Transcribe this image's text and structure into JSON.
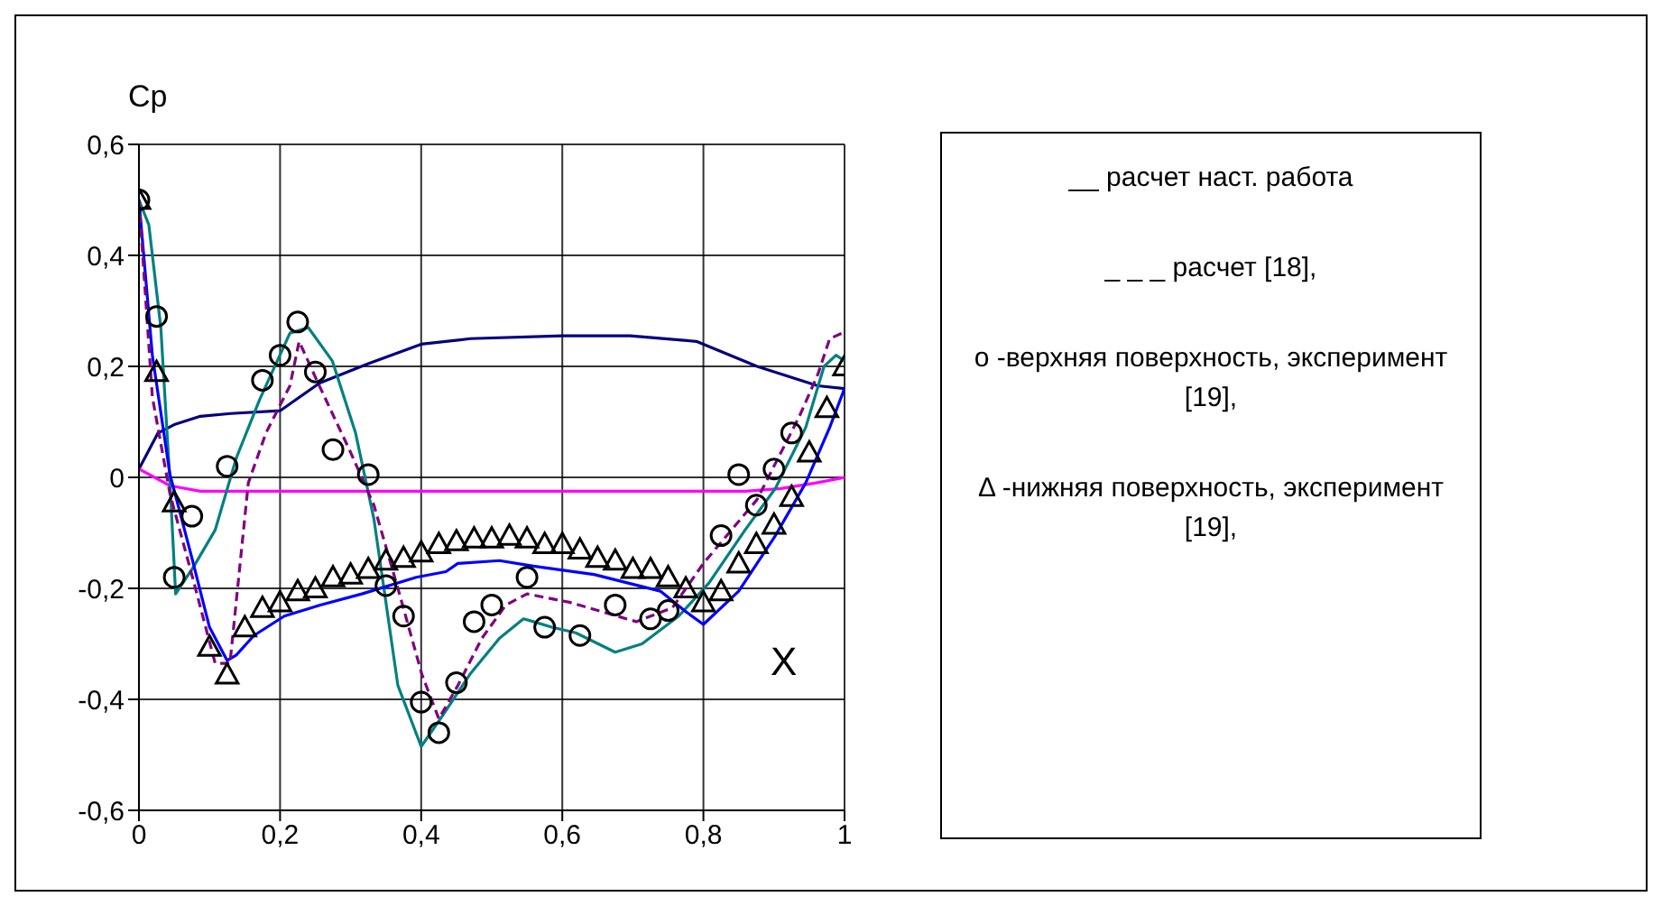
{
  "chart_data": {
    "type": "line",
    "xlabel": "X",
    "ylabel": "Cp",
    "xlim": [
      0,
      1
    ],
    "ylim": [
      -0.6,
      0.6
    ],
    "xticks": [
      0,
      {
        "value": 0.2,
        "label": "0,2"
      },
      {
        "value": 0.4,
        "label": "0,4"
      },
      {
        "value": 0.6,
        "label": "0,6"
      },
      {
        "value": 0.8,
        "label": "0,8"
      },
      1
    ],
    "yticks": [
      {
        "value": -0.6,
        "label": "-0,6"
      },
      {
        "value": -0.4,
        "label": "-0,4"
      },
      {
        "value": -0.2,
        "label": "-0,2"
      },
      0,
      {
        "value": 0.2,
        "label": "0,2"
      },
      {
        "value": 0.4,
        "label": "0,4"
      },
      {
        "value": 0.6,
        "label": "0,6"
      }
    ],
    "grid": true,
    "annotations": [
      "__ расчет наст. работа",
      "_ _ _ расчет [18],",
      "о -верхняя поверхность, эксперимент [19],",
      "Δ -нижняя поверхность, эксперимент [19],"
    ],
    "series": [
      {
        "color": "#000080",
        "line_style": "solid",
        "x": [
          0,
          0.027,
          0.05,
          0.087,
          0.13,
          0.2,
          0.256,
          0.325,
          0.4,
          0.47,
          0.6,
          0.696,
          0.79,
          0.876,
          0.962,
          1
        ],
        "values": [
          0.015,
          0.08,
          0.095,
          0.11,
          0.115,
          0.12,
          0.17,
          0.205,
          0.24,
          0.25,
          0.255,
          0.255,
          0.245,
          0.2,
          0.165,
          0.16
        ]
      },
      {
        "color": "#ff00ff",
        "line_style": "solid",
        "x": [
          0,
          0.044,
          0.087,
          0.86,
          0.91,
          0.96,
          1
        ],
        "values": [
          0.015,
          -0.015,
          -0.025,
          -0.025,
          -0.02,
          -0.01,
          0
        ]
      },
      {
        "color": "#008080",
        "line_style": "solid",
        "x": [
          0,
          0.014,
          0.031,
          0.044,
          0.052,
          0.078,
          0.108,
          0.138,
          0.171,
          0.214,
          0.24,
          0.274,
          0.307,
          0.333,
          0.367,
          0.4,
          0.43,
          0.469,
          0.511,
          0.545,
          0.559,
          0.585,
          0.619,
          0.675,
          0.713,
          0.765,
          0.808,
          0.859,
          0.902,
          0.945,
          0.971,
          0.988,
          1
        ],
        "values": [
          0.5,
          0.455,
          0.27,
          -0.01,
          -0.21,
          -0.16,
          -0.095,
          0.035,
          0.14,
          0.26,
          0.27,
          0.21,
          0.08,
          -0.075,
          -0.375,
          -0.485,
          -0.43,
          -0.355,
          -0.29,
          -0.255,
          -0.26,
          -0.27,
          -0.28,
          -0.315,
          -0.3,
          -0.25,
          -0.19,
          -0.095,
          -0.02,
          0.09,
          0.2,
          0.22,
          0.21
        ]
      },
      {
        "color": "#0000ff",
        "line_style": "solid",
        "x": [
          0,
          0.019,
          0.044,
          0.074,
          0.1,
          0.125,
          0.138,
          0.163,
          0.206,
          0.257,
          0.316,
          0.393,
          0.435,
          0.452,
          0.511,
          0.559,
          0.645,
          0.739,
          0.773,
          0.8,
          0.85,
          0.902,
          0.945,
          0.979,
          1
        ],
        "values": [
          0.5,
          0.22,
          0.005,
          -0.14,
          -0.27,
          -0.33,
          -0.32,
          -0.285,
          -0.25,
          -0.23,
          -0.21,
          -0.18,
          -0.17,
          -0.155,
          -0.15,
          -0.16,
          -0.175,
          -0.205,
          -0.24,
          -0.265,
          -0.205,
          -0.105,
          -0.01,
          0.09,
          0.16
        ]
      },
      {
        "color": "#800080",
        "line_style": "dashed",
        "x": [
          0,
          0.019,
          0.044,
          0.078,
          0.108,
          0.129,
          0.155,
          0.18,
          0.214,
          0.227,
          0.252,
          0.3,
          0.333,
          0.367,
          0.401,
          0.425,
          0.452,
          0.486,
          0.52,
          0.55,
          0.61,
          0.705,
          0.756,
          0.8,
          0.876,
          0.936,
          0.962,
          0.979,
          0.997
        ],
        "values": [
          0.5,
          0.145,
          -0.03,
          -0.19,
          -0.335,
          -0.335,
          -0.01,
          0.08,
          0.165,
          0.245,
          0.175,
          0.045,
          -0.05,
          -0.2,
          -0.355,
          -0.435,
          -0.375,
          -0.29,
          -0.23,
          -0.21,
          -0.225,
          -0.26,
          -0.235,
          -0.155,
          -0.04,
          0.11,
          0.185,
          0.25,
          0.26
        ]
      },
      {
        "type": "scatter",
        "color": "#000000",
        "marker": "circle",
        "x": [
          0,
          0.025,
          0.05,
          0.075,
          0.125,
          0.175,
          0.2,
          0.225,
          0.25,
          0.275,
          0.325,
          0.35,
          0.375,
          0.4,
          0.425,
          0.45,
          0.475,
          0.5,
          0.55,
          0.575,
          0.625,
          0.675,
          0.725,
          0.75,
          0.825,
          0.85,
          0.875,
          0.9,
          0.925
        ],
        "values": [
          0.5,
          0.29,
          -0.18,
          -0.07,
          0.02,
          0.175,
          0.22,
          0.28,
          0.19,
          0.05,
          0.005,
          -0.195,
          -0.25,
          -0.405,
          -0.46,
          -0.37,
          -0.26,
          -0.23,
          -0.18,
          -0.27,
          -0.285,
          -0.23,
          -0.255,
          -0.24,
          -0.105,
          0.005,
          -0.05,
          0.015,
          0.08
        ]
      },
      {
        "type": "scatter",
        "color": "#000000",
        "marker": "triangle",
        "x": [
          0,
          0.025,
          0.05,
          0.1,
          0.125,
          0.15,
          0.175,
          0.2,
          0.225,
          0.25,
          0.275,
          0.3,
          0.325,
          0.35,
          0.375,
          0.4,
          0.425,
          0.45,
          0.475,
          0.5,
          0.525,
          0.55,
          0.575,
          0.6,
          0.625,
          0.65,
          0.675,
          0.7,
          0.725,
          0.75,
          0.775,
          0.8,
          0.825,
          0.85,
          0.875,
          0.9,
          0.925,
          0.95,
          0.975,
          1
        ],
        "values": [
          0.5,
          0.19,
          -0.045,
          -0.305,
          -0.355,
          -0.27,
          -0.235,
          -0.225,
          -0.205,
          -0.2,
          -0.18,
          -0.175,
          -0.165,
          -0.15,
          -0.145,
          -0.135,
          -0.12,
          -0.115,
          -0.11,
          -0.11,
          -0.105,
          -0.11,
          -0.12,
          -0.12,
          -0.13,
          -0.145,
          -0.15,
          -0.165,
          -0.165,
          -0.18,
          -0.2,
          -0.225,
          -0.205,
          -0.155,
          -0.12,
          -0.085,
          -0.035,
          0.045,
          0.125,
          0.2
        ]
      }
    ]
  }
}
